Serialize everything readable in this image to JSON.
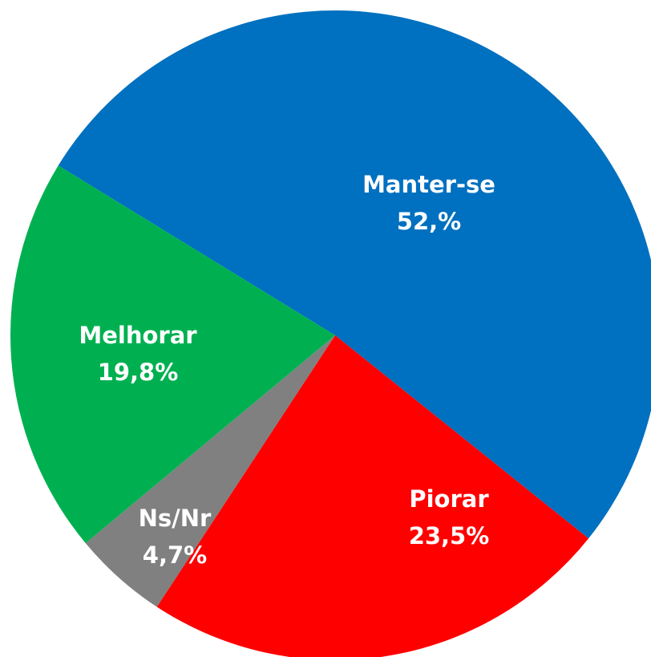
{
  "chart_data": {
    "type": "pie",
    "categories": [
      "Manter-se",
      "Piorar",
      "Ns/Nr",
      "Melhorar"
    ],
    "values": [
      52,
      23.5,
      4.7,
      19.8
    ],
    "value_labels": [
      "52,%",
      "23,5%",
      "4,7%",
      "19,8%"
    ],
    "colors": [
      "#0070c0",
      "#ff0000",
      "#808080",
      "#00b050"
    ]
  }
}
